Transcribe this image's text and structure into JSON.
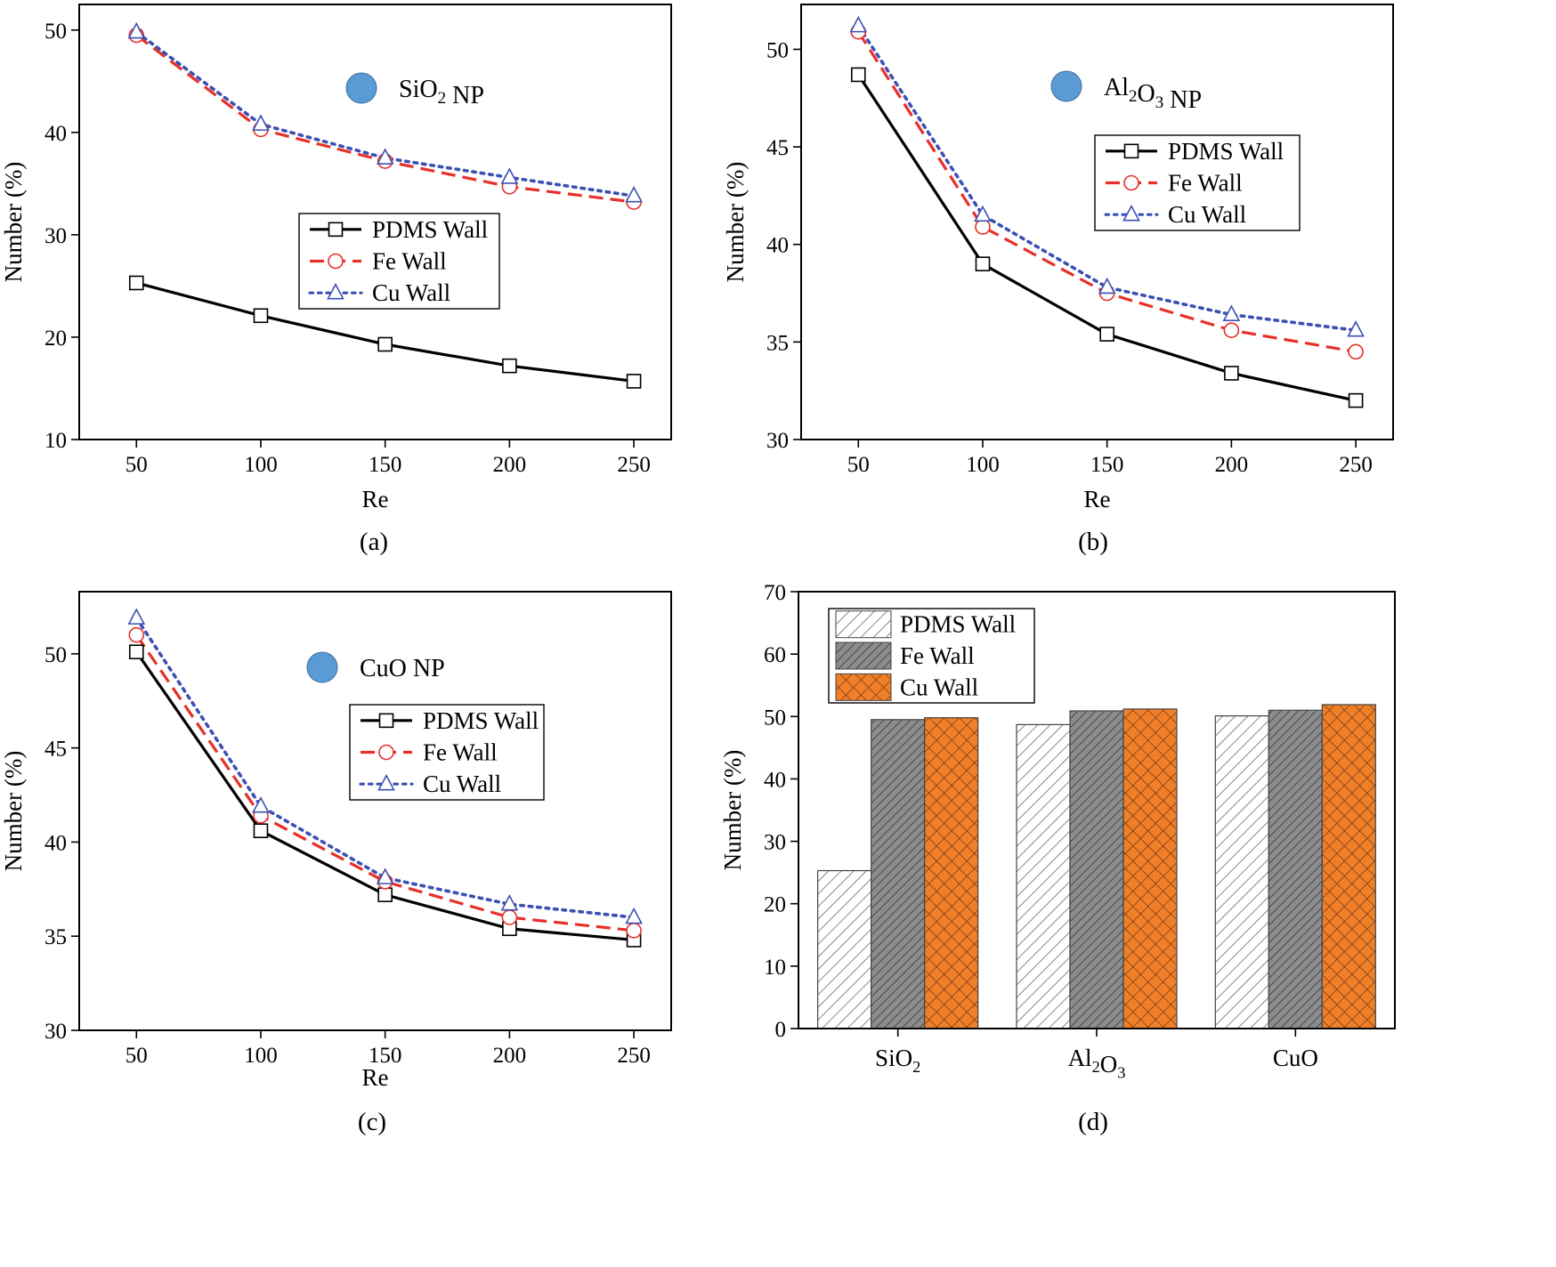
{
  "chart_data": [
    {
      "type": "line",
      "panel_label": "(a)",
      "annotation": {
        "main": "SiO",
        "sub": "2",
        "main2": "",
        "sub2": "",
        "tail": " NP"
      },
      "annotation_color": "#5b9bd5",
      "xlabel": "Re",
      "ylabel": "Number (%)",
      "x": [
        50,
        100,
        150,
        200,
        250
      ],
      "xticks": [
        50,
        100,
        150,
        200,
        250
      ],
      "xlim": [
        27,
        265
      ],
      "ylim": [
        10,
        52.5
      ],
      "yticks": [
        10,
        20,
        30,
        40,
        50
      ],
      "legend_position": "center-right",
      "series": [
        {
          "name": "PDMS Wall",
          "values": [
            25.3,
            22.1,
            19.3,
            17.2,
            15.7
          ],
          "color": "#000000",
          "marker": "square",
          "dash": "solid"
        },
        {
          "name": "Fe Wall",
          "values": [
            49.5,
            40.3,
            37.2,
            34.7,
            33.2
          ],
          "color": "#e8302a",
          "marker": "circle",
          "dash": "dashed"
        },
        {
          "name": "Cu Wall",
          "values": [
            49.8,
            40.8,
            37.5,
            35.6,
            33.8
          ],
          "color": "#3c50b4",
          "marker": "triangle",
          "dash": "dotted"
        }
      ]
    },
    {
      "type": "line",
      "panel_label": "(b)",
      "annotation": {
        "main": "Al",
        "sub": "2",
        "main2": "O",
        "sub2": "3",
        "tail": " NP"
      },
      "annotation_color": "#5b9bd5",
      "xlabel": "Re",
      "ylabel": "Number (%)",
      "x": [
        50,
        100,
        150,
        200,
        250
      ],
      "xticks": [
        50,
        100,
        150,
        200,
        250
      ],
      "xlim": [
        27,
        265
      ],
      "ylim": [
        30,
        52.3
      ],
      "yticks": [
        30,
        35,
        40,
        45,
        50
      ],
      "legend_position": "top-right",
      "series": [
        {
          "name": "PDMS Wall",
          "values": [
            48.7,
            39.0,
            35.4,
            33.4,
            32.0
          ],
          "color": "#000000",
          "marker": "square",
          "dash": "solid"
        },
        {
          "name": "Fe Wall",
          "values": [
            50.9,
            40.9,
            37.5,
            35.6,
            34.5
          ],
          "color": "#e8302a",
          "marker": "circle",
          "dash": "dashed"
        },
        {
          "name": "Cu Wall",
          "values": [
            51.2,
            41.5,
            37.8,
            36.4,
            35.6
          ],
          "color": "#3c50b4",
          "marker": "triangle",
          "dash": "dotted"
        }
      ]
    },
    {
      "type": "line",
      "panel_label": "(c)",
      "annotation": {
        "main": "CuO",
        "sub": "",
        "main2": "",
        "sub2": "",
        "tail": " NP"
      },
      "annotation_color": "#5b9bd5",
      "xlabel": "Re",
      "ylabel": "Number (%)",
      "x": [
        50,
        100,
        150,
        200,
        250
      ],
      "xticks": [
        50,
        100,
        150,
        200,
        250
      ],
      "xlim": [
        27,
        265
      ],
      "ylim": [
        30,
        53.3
      ],
      "yticks": [
        30,
        35,
        40,
        45,
        50
      ],
      "legend_position": "center-right",
      "series": [
        {
          "name": "PDMS Wall",
          "values": [
            50.1,
            40.6,
            37.2,
            35.4,
            34.8
          ],
          "color": "#000000",
          "marker": "square",
          "dash": "solid"
        },
        {
          "name": "Fe Wall",
          "values": [
            51.0,
            41.4,
            37.9,
            36.0,
            35.3
          ],
          "color": "#e8302a",
          "marker": "circle",
          "dash": "dashed"
        },
        {
          "name": "Cu Wall",
          "values": [
            51.9,
            41.9,
            38.1,
            36.7,
            36.0
          ],
          "color": "#3c50b4",
          "marker": "triangle",
          "dash": "dotted"
        }
      ]
    },
    {
      "type": "bar",
      "panel_label": "(d)",
      "ylabel": "Number (%)",
      "categories": [
        {
          "main": "SiO",
          "sub": "2",
          "main2": "",
          "sub2": ""
        },
        {
          "main": "Al",
          "sub": "2",
          "main2": "O",
          "sub2": "3"
        },
        {
          "main": "CuO",
          "sub": "",
          "main2": "",
          "sub2": ""
        }
      ],
      "ylim": [
        0,
        70
      ],
      "yticks": [
        0,
        10,
        20,
        30,
        40,
        50,
        60,
        70
      ],
      "legend_position": "top-left",
      "series": [
        {
          "name": "PDMS Wall",
          "values": [
            25.3,
            48.7,
            50.1
          ],
          "fill": "#ffffff",
          "pattern": "hatch-diagonal"
        },
        {
          "name": "Fe Wall",
          "values": [
            49.5,
            50.9,
            51.0
          ],
          "fill": "#8c8c8c",
          "pattern": "hatch-diagonal-dense"
        },
        {
          "name": "Cu Wall",
          "values": [
            49.8,
            51.2,
            51.9
          ],
          "fill": "#f07f2a",
          "pattern": "crosshatch"
        }
      ]
    }
  ]
}
